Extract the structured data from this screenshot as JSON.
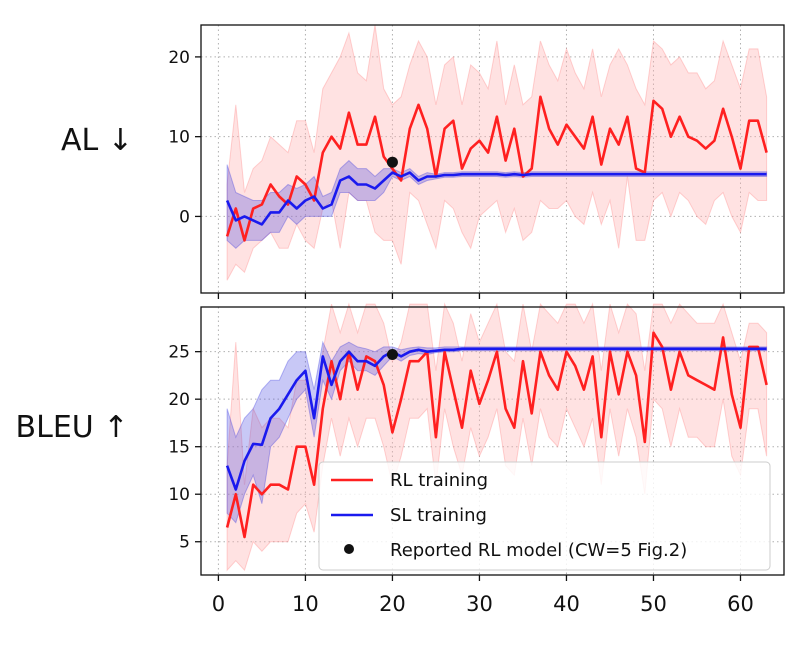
{
  "chart_data": [
    {
      "type": "line",
      "panel": "top",
      "ylabel": "AL ↓",
      "xlim": [
        -2,
        65
      ],
      "ylim": [
        -9.6,
        24
      ],
      "yticks": [
        0,
        10,
        20
      ],
      "ytick_labels": [
        "0",
        "10",
        "20"
      ],
      "xticks": [
        0,
        10,
        20,
        30,
        40,
        50,
        60
      ],
      "grid": true,
      "series": [
        {
          "name": "RL training",
          "color": "#ff2020",
          "x": [
            1,
            2,
            3,
            4,
            5,
            6,
            7,
            8,
            9,
            10,
            11,
            12,
            13,
            14,
            15,
            16,
            17,
            18,
            19,
            20,
            21,
            22,
            23,
            24,
            25,
            26,
            27,
            28,
            29,
            30,
            31,
            32,
            33,
            34,
            35,
            36,
            37,
            38,
            39,
            40,
            41,
            42,
            43,
            44,
            45,
            46,
            47,
            48,
            49,
            50,
            51,
            52,
            53,
            54,
            55,
            56,
            57,
            58,
            59,
            60,
            61,
            62,
            63
          ],
          "y": [
            -2.5,
            1,
            -3,
            1,
            1.5,
            4,
            2.5,
            1.5,
            5,
            4,
            2,
            8,
            10,
            8.5,
            13,
            9,
            9,
            12.5,
            7.5,
            6,
            4.5,
            11,
            14,
            11,
            5,
            11,
            12,
            6,
            8.5,
            9.5,
            8,
            12.5,
            7,
            11,
            5,
            6,
            15,
            11,
            9,
            11.5,
            10,
            8.5,
            12.5,
            6.5,
            11,
            9,
            12.5,
            6,
            5.5,
            14.5,
            13.5,
            10,
            12.5,
            10,
            9.5,
            8.5,
            9.5,
            13.5,
            10,
            6,
            12,
            12,
            8
          ],
          "band_low": [
            -8,
            -6,
            -7,
            -4,
            -3,
            -2,
            -4,
            -4,
            -1,
            -3,
            -4,
            1,
            2,
            -4,
            3,
            2,
            2,
            -2,
            -3,
            -3,
            -6,
            3,
            2,
            -1,
            -4,
            2,
            1,
            -2,
            -4,
            0,
            1,
            2,
            -2,
            1,
            -3,
            -2,
            2,
            1,
            1,
            2,
            0,
            -1,
            3,
            -1,
            2,
            -4,
            5,
            -3,
            -3,
            2,
            3,
            0,
            3,
            2,
            0,
            -1,
            2,
            3,
            0,
            -2,
            3,
            2,
            2
          ],
          "band_high": [
            4,
            14,
            3,
            6,
            7,
            10,
            9,
            8,
            12,
            12,
            8,
            16,
            18,
            20,
            23,
            18,
            17,
            24,
            16,
            14,
            15,
            19,
            22,
            20,
            14,
            19,
            20,
            14,
            19,
            18,
            16,
            22,
            14,
            19,
            14,
            15,
            22,
            19,
            17,
            21,
            18,
            16,
            21,
            15,
            19,
            21,
            19,
            16,
            14,
            22,
            21,
            19,
            20,
            18,
            18,
            16,
            17,
            22,
            19,
            16,
            21,
            21,
            15
          ]
        },
        {
          "name": "SL training",
          "color": "#1a1aee",
          "x": [
            1,
            2,
            3,
            4,
            5,
            6,
            7,
            8,
            9,
            10,
            11,
            12,
            13,
            14,
            15,
            16,
            17,
            18,
            19,
            20,
            21,
            22,
            23,
            24,
            25,
            26,
            27,
            28,
            29,
            30,
            31,
            32,
            33,
            34,
            35,
            36,
            37,
            38,
            39,
            40,
            41,
            42,
            43,
            44,
            45,
            46,
            47,
            48,
            49,
            50,
            51,
            52,
            53,
            54,
            55,
            56,
            57,
            58,
            59,
            60,
            61,
            62,
            63
          ],
          "y": [
            2,
            -0.5,
            0,
            -0.5,
            -1,
            0.5,
            0.5,
            2,
            1,
            2,
            2.5,
            1,
            1.5,
            4.5,
            5,
            4,
            4,
            3.5,
            4.5,
            5.5,
            5,
            5.5,
            4.5,
            5,
            5,
            5.2,
            5.2,
            5.3,
            5.3,
            5.3,
            5.3,
            5.3,
            5.2,
            5.3,
            5.2,
            5.3,
            5.3,
            5.3,
            5.3,
            5.3,
            5.3,
            5.3,
            5.3,
            5.3,
            5.3,
            5.3,
            5.3,
            5.3,
            5.3,
            5.3,
            5.3,
            5.3,
            5.3,
            5.3,
            5.3,
            5.3,
            5.3,
            5.3,
            5.3,
            5.3,
            5.3,
            5.3,
            5.3
          ],
          "band_low": [
            -3,
            -4,
            -3,
            -3,
            -3,
            -2,
            -2,
            0,
            -1,
            0,
            0,
            0,
            0,
            3,
            3,
            2,
            2,
            2,
            3,
            5,
            4.5,
            5,
            4,
            4.5,
            4.7,
            4.9,
            4.9,
            5,
            5,
            5,
            5,
            5,
            4.9,
            5,
            4.9,
            5,
            5,
            5,
            5,
            5,
            5,
            5,
            5,
            5,
            5,
            5,
            5,
            5,
            5,
            5,
            5,
            5,
            5,
            5,
            5,
            5,
            5,
            5,
            5,
            5,
            5,
            5,
            5
          ],
          "band_high": [
            6.5,
            3,
            2.5,
            2,
            2,
            3,
            3,
            4,
            3.5,
            4,
            5,
            2.5,
            3,
            6,
            7,
            6,
            6,
            5,
            6,
            6,
            5.5,
            6,
            5,
            5.5,
            5.3,
            5.5,
            5.5,
            5.6,
            5.6,
            5.6,
            5.6,
            5.6,
            5.5,
            5.6,
            5.5,
            5.6,
            5.6,
            5.6,
            5.6,
            5.6,
            5.6,
            5.6,
            5.6,
            5.6,
            5.6,
            5.6,
            5.6,
            5.6,
            5.6,
            5.6,
            5.6,
            5.6,
            5.6,
            5.6,
            5.6,
            5.6,
            5.6,
            5.6,
            5.6,
            5.6,
            5.6,
            5.6,
            5.6
          ]
        }
      ],
      "reported_point": {
        "name": "Reported RL model (CW=5 Fig.2)",
        "x": 20,
        "y": 6.8,
        "color": "#111111"
      }
    },
    {
      "type": "line",
      "panel": "bottom",
      "ylabel": "BLEU ↑",
      "xlim": [
        -2,
        65
      ],
      "ylim": [
        1.5,
        29.7
      ],
      "yticks": [
        5,
        10,
        15,
        20,
        25
      ],
      "ytick_labels": [
        "5",
        "10",
        "15",
        "20",
        "25"
      ],
      "xticks": [
        0,
        10,
        20,
        30,
        40,
        50,
        60
      ],
      "xtick_labels": [
        "0",
        "10",
        "20",
        "30",
        "40",
        "50",
        "60"
      ],
      "grid": true,
      "series": [
        {
          "name": "RL training",
          "color": "#ff2020",
          "x": [
            1,
            2,
            3,
            4,
            5,
            6,
            7,
            8,
            9,
            10,
            11,
            12,
            13,
            14,
            15,
            16,
            17,
            18,
            19,
            20,
            21,
            22,
            23,
            24,
            25,
            26,
            27,
            28,
            29,
            30,
            31,
            32,
            33,
            34,
            35,
            36,
            37,
            38,
            39,
            40,
            41,
            42,
            43,
            44,
            45,
            46,
            47,
            48,
            49,
            50,
            51,
            52,
            53,
            54,
            55,
            56,
            57,
            58,
            59,
            60,
            61,
            62,
            63
          ],
          "y": [
            6.5,
            10,
            5.5,
            11,
            10,
            11,
            11,
            10.5,
            15,
            15,
            11,
            19,
            24,
            20,
            25,
            21,
            24.5,
            24,
            21.5,
            16.5,
            20,
            24,
            24,
            25,
            16,
            25,
            21,
            17,
            23,
            19.5,
            22,
            25,
            19,
            17,
            24,
            18.5,
            25,
            22.5,
            21,
            25,
            23.5,
            21,
            24.5,
            16,
            25,
            20.5,
            25,
            22.5,
            15.5,
            27,
            25.5,
            21,
            25,
            22.5,
            22,
            21.5,
            21,
            26.5,
            20.5,
            17,
            25.5,
            25.5,
            21.5
          ],
          "band_low": [
            2,
            3,
            2,
            5,
            4,
            5,
            5,
            5,
            8,
            9,
            6,
            13,
            18,
            14,
            18,
            15,
            18,
            18,
            15,
            11,
            14,
            18,
            18,
            19,
            11,
            19,
            15,
            12,
            17,
            14,
            16,
            19,
            13,
            12,
            18,
            13,
            19,
            16,
            15,
            19,
            17,
            15,
            18,
            11,
            19,
            14,
            19,
            16,
            10,
            20,
            19,
            15,
            19,
            16,
            16,
            15,
            15,
            20,
            14,
            12,
            19,
            19,
            14
          ],
          "band_high": [
            13,
            26,
            11,
            19,
            17,
            18,
            18,
            17,
            22,
            22,
            18,
            25,
            30,
            27,
            30,
            27,
            30,
            30,
            28,
            24,
            26,
            30,
            30,
            30,
            23,
            30,
            28,
            24,
            29,
            26,
            28,
            30,
            25,
            24,
            30,
            25,
            30,
            29,
            28,
            30,
            30,
            28,
            30,
            23,
            30,
            27,
            30,
            29,
            23,
            30,
            30,
            28,
            30,
            29,
            28,
            28,
            28,
            30,
            27,
            24,
            28,
            28,
            27
          ]
        },
        {
          "name": "SL training",
          "color": "#1a1aee",
          "x": [
            1,
            2,
            3,
            4,
            5,
            6,
            7,
            8,
            9,
            10,
            11,
            12,
            13,
            14,
            15,
            16,
            17,
            18,
            19,
            20,
            21,
            22,
            23,
            24,
            25,
            26,
            27,
            28,
            29,
            30,
            31,
            32,
            33,
            34,
            35,
            36,
            37,
            38,
            39,
            40,
            41,
            42,
            43,
            44,
            45,
            46,
            47,
            48,
            49,
            50,
            51,
            52,
            53,
            54,
            55,
            56,
            57,
            58,
            59,
            60,
            61,
            62,
            63
          ],
          "y": [
            13,
            10.5,
            13.5,
            15.3,
            15.2,
            18,
            19,
            20.5,
            22,
            23,
            18,
            24.5,
            21.5,
            24,
            25,
            24,
            24,
            23.5,
            24.5,
            25,
            24.5,
            25,
            25.2,
            25,
            25.1,
            25.2,
            25.2,
            25.3,
            25.3,
            25.3,
            25.3,
            25.3,
            25.3,
            25.3,
            25.3,
            25.3,
            25.3,
            25.3,
            25.3,
            25.3,
            25.3,
            25.3,
            25.3,
            25.3,
            25.3,
            25.3,
            25.3,
            25.3,
            25.3,
            25.3,
            25.3,
            25.3,
            25.3,
            25.3,
            25.3,
            25.3,
            25.3,
            25.3,
            25.3,
            25.3,
            25.3,
            25.3,
            25.3
          ],
          "band_low": [
            8,
            7,
            10,
            12,
            9,
            15,
            16,
            18,
            20,
            21,
            16,
            22,
            20,
            23,
            24,
            23,
            23,
            22.5,
            23.5,
            24.5,
            24,
            24.6,
            24.8,
            24.7,
            24.9,
            25,
            25,
            25.1,
            25.1,
            25.1,
            25.1,
            25.1,
            25.1,
            25.1,
            25.1,
            25.1,
            25.1,
            25.1,
            25.1,
            25.1,
            25.1,
            25.1,
            25.1,
            25.1,
            25.1,
            25.1,
            25.1,
            25.1,
            25.1,
            25.1,
            25.1,
            25.1,
            25.1,
            25.1,
            25.1,
            25.1,
            25.1,
            25.1,
            25.1,
            25.1,
            25.1,
            25.1,
            25.1
          ],
          "band_high": [
            19,
            16,
            18,
            19,
            21,
            22,
            22,
            24,
            25,
            25,
            21,
            26,
            24,
            25.5,
            26,
            25.5,
            25.3,
            25,
            25.5,
            25.5,
            25.2,
            25.4,
            25.5,
            25.4,
            25.4,
            25.5,
            25.5,
            25.5,
            25.5,
            25.5,
            25.5,
            25.5,
            25.5,
            25.5,
            25.5,
            25.5,
            25.5,
            25.5,
            25.5,
            25.5,
            25.5,
            25.5,
            25.5,
            25.5,
            25.5,
            25.5,
            25.5,
            25.5,
            25.5,
            25.5,
            25.5,
            25.5,
            25.5,
            25.5,
            25.5,
            25.5,
            25.5,
            25.5,
            25.5,
            25.5,
            25.5,
            25.5,
            25.5
          ]
        }
      ],
      "reported_point": {
        "name": "Reported RL model (CW=5 Fig.2)",
        "x": 20,
        "y": 24.7,
        "color": "#111111"
      },
      "legend": {
        "placement": "lower-right",
        "entries": [
          "RL training",
          "SL training",
          "Reported RL model (CW=5 Fig.2)"
        ]
      }
    }
  ]
}
